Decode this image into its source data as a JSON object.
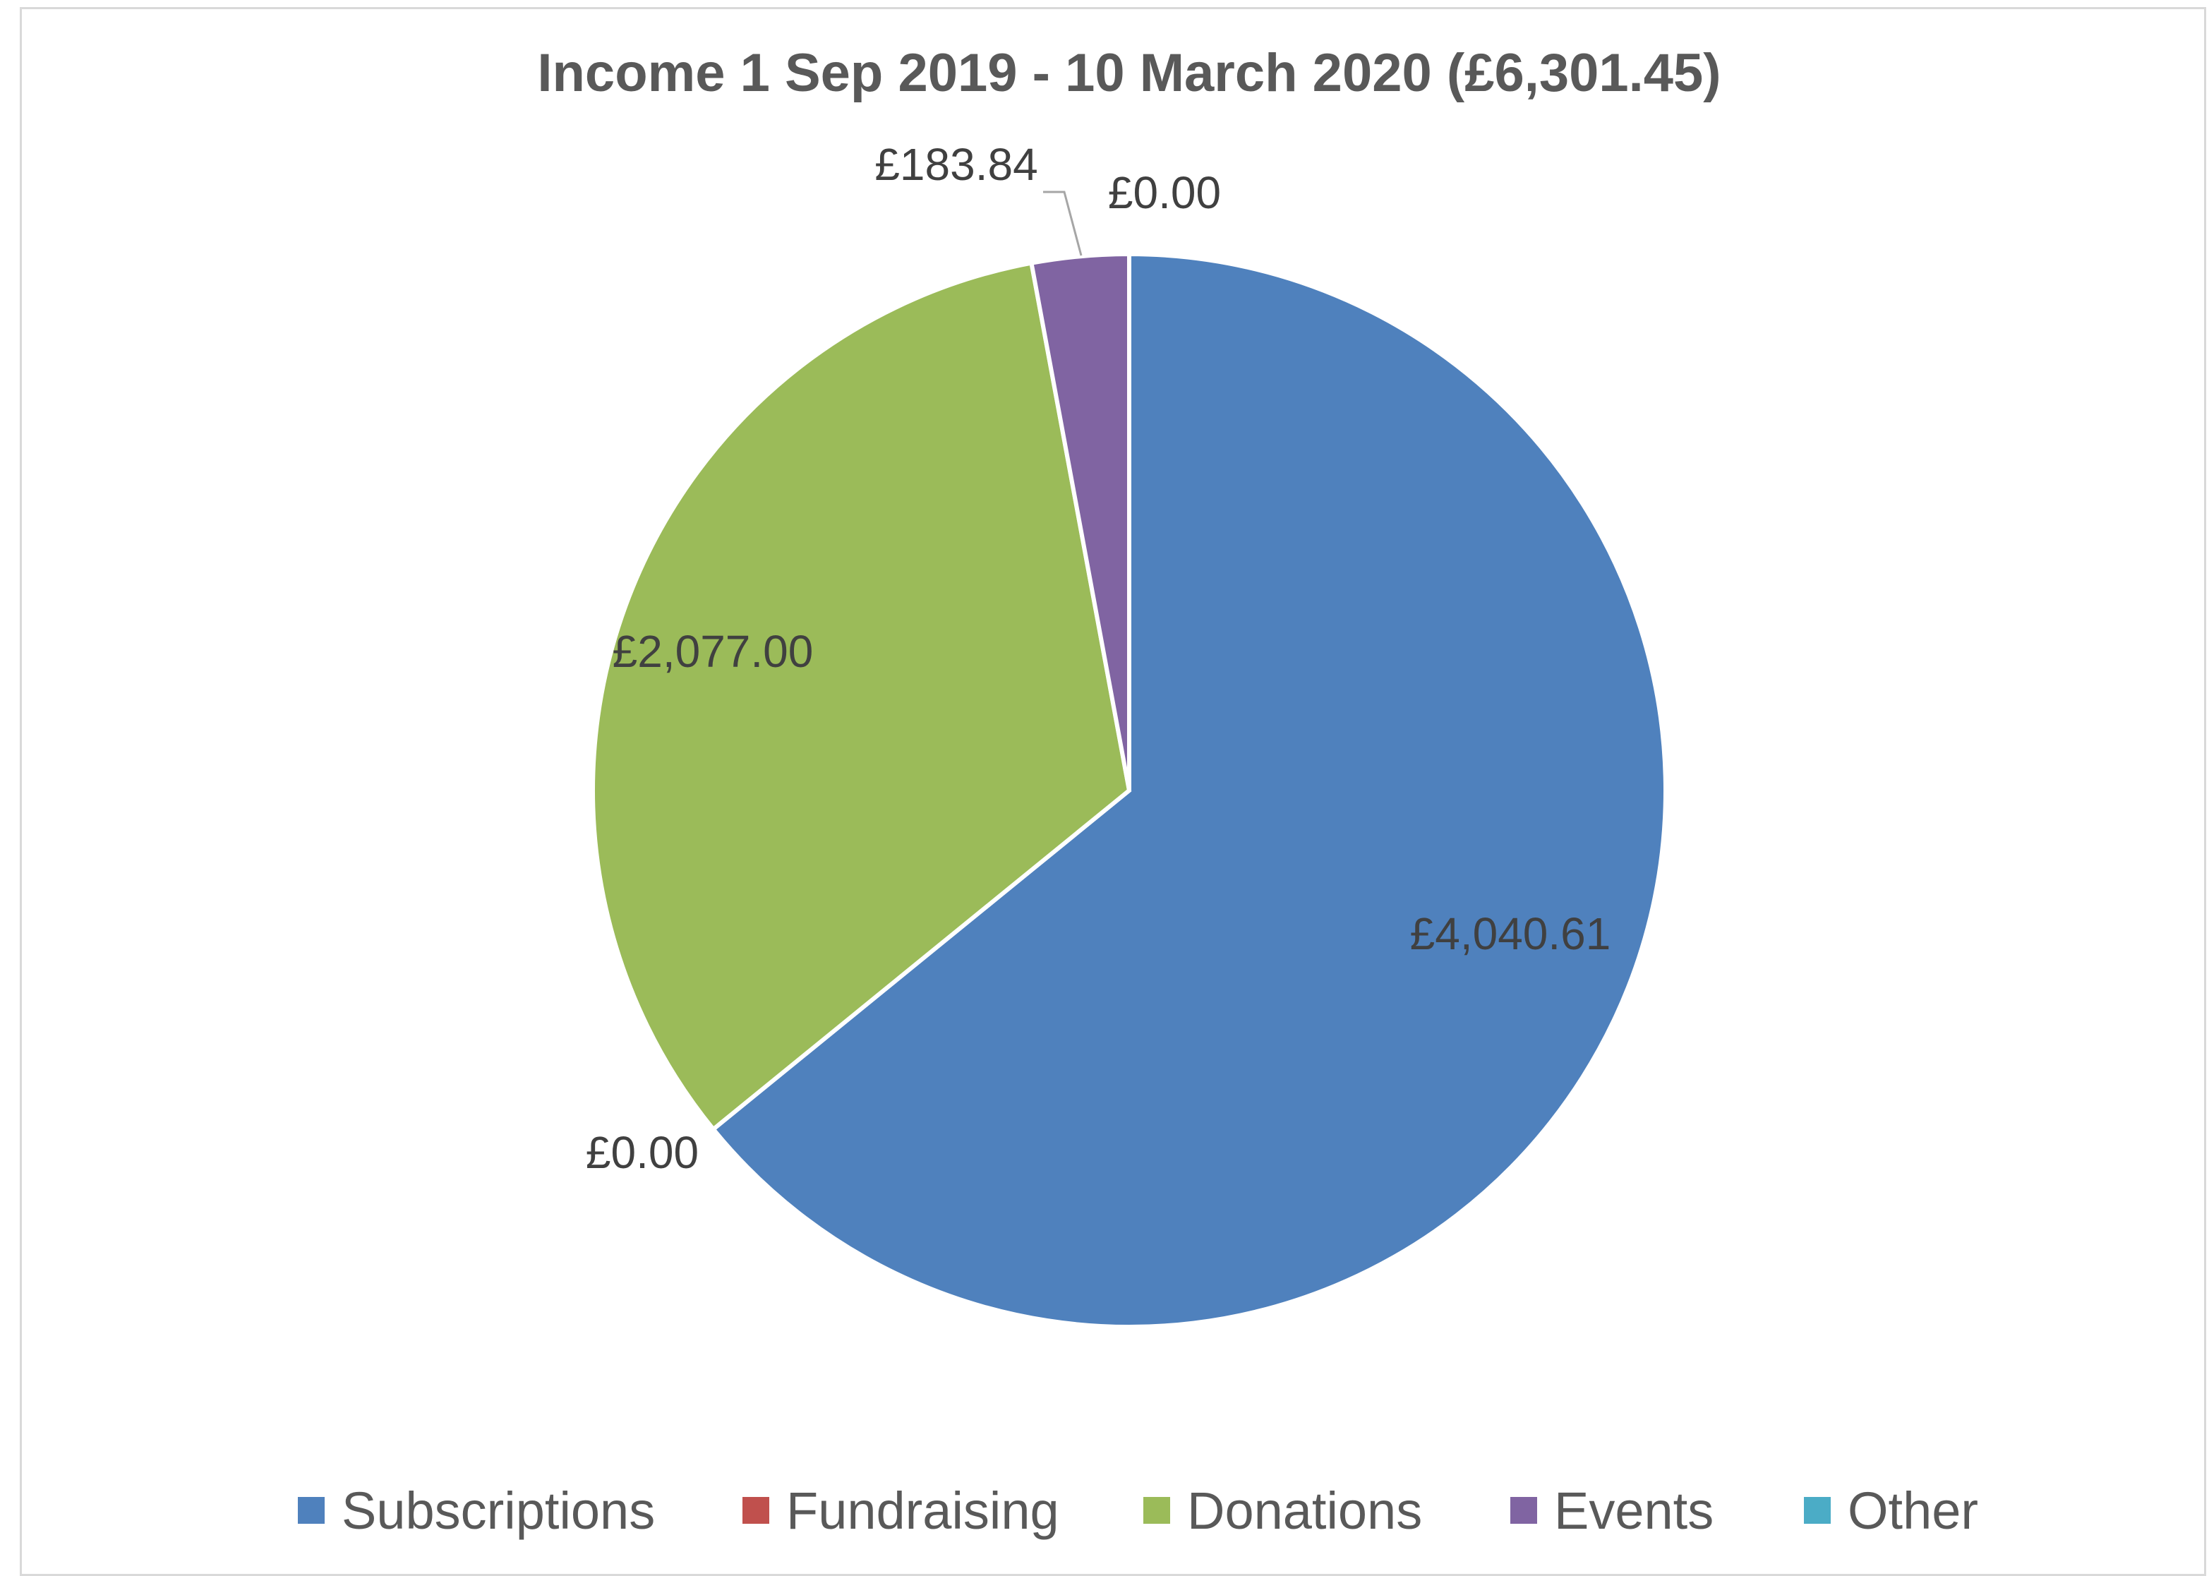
{
  "chart_data": {
    "type": "pie",
    "title": "Income 1 Sep 2019 - 10 March 2020 (£6,301.45)",
    "slices": [
      {
        "name": "Subscriptions",
        "value": 4040.61,
        "label": "£4,040.61",
        "color": "#4f81bd"
      },
      {
        "name": "Fundraising",
        "value": 0.0,
        "label": "£0.00",
        "color": "#c0504d"
      },
      {
        "name": "Donations",
        "value": 2077.0,
        "label": "£2,077.00",
        "color": "#9bbb59"
      },
      {
        "name": "Events",
        "value": 183.84,
        "label": "£183.84",
        "color": "#8064a2"
      },
      {
        "name": "Other",
        "value": 0.0,
        "label": "£0.00",
        "color": "#4bacc6"
      }
    ],
    "start_angle": "12 o'clock",
    "direction": "clockwise",
    "legend_position": "bottom"
  }
}
